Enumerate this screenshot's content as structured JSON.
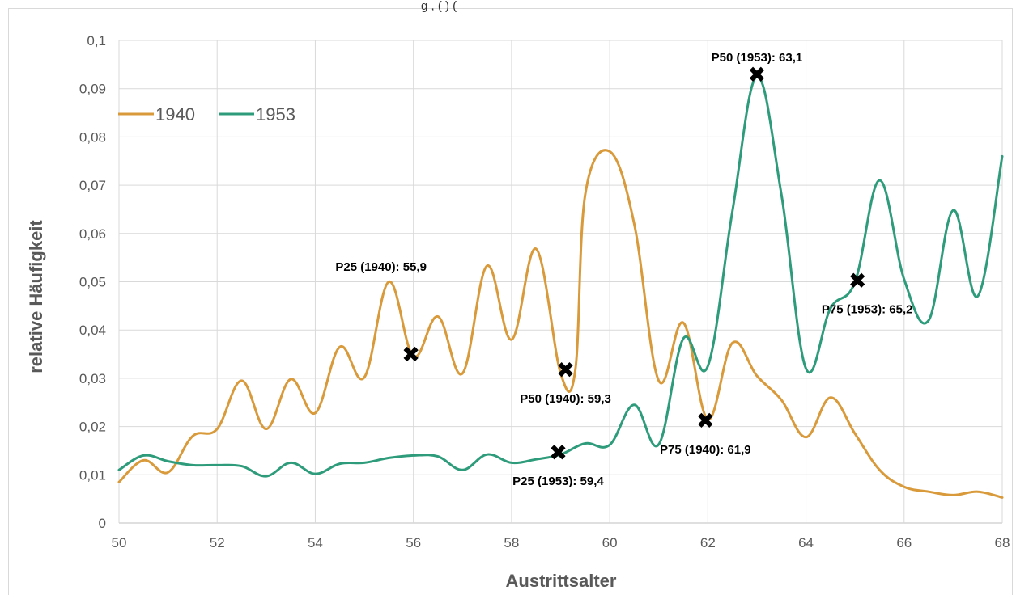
{
  "chart_data": {
    "type": "line",
    "title": "",
    "top_caption_fragment": "g           ,                                                        (        )                      (",
    "xlabel": "Austrittsalter",
    "ylabel": "relative Häufigkeit",
    "xlim": [
      50,
      68
    ],
    "ylim": [
      0,
      0.1
    ],
    "x_ticks": [
      "50",
      "52",
      "54",
      "56",
      "58",
      "60",
      "62",
      "64",
      "66",
      "68"
    ],
    "y_ticks": [
      "0",
      "0,01",
      "0,02",
      "0,03",
      "0,04",
      "0,05",
      "0,06",
      "0,07",
      "0,08",
      "0,09",
      "0,1"
    ],
    "grid": true,
    "legend_position": "top-left",
    "series": [
      {
        "name": "1940",
        "color": "#D89A3A",
        "x": [
          50,
          50.5,
          51,
          51.5,
          52,
          52.5,
          53,
          53.5,
          54,
          54.5,
          55,
          55.5,
          56,
          56.5,
          57,
          57.5,
          58,
          58.5,
          59,
          59.3,
          59.5,
          60,
          60.5,
          61,
          61.5,
          62,
          62.5,
          63,
          63.5,
          64,
          64.5,
          65,
          65.5,
          66,
          66.5,
          67,
          67.5,
          68
        ],
        "y": [
          0.0085,
          0.013,
          0.0105,
          0.018,
          0.0195,
          0.0295,
          0.0195,
          0.0298,
          0.0228,
          0.0365,
          0.0302,
          0.05,
          0.0345,
          0.0428,
          0.031,
          0.0533,
          0.038,
          0.0568,
          0.031,
          0.0318,
          0.068,
          0.077,
          0.062,
          0.0295,
          0.0415,
          0.0215,
          0.0373,
          0.0305,
          0.0255,
          0.0178,
          0.026,
          0.0185,
          0.011,
          0.0075,
          0.0065,
          0.0058,
          0.0065,
          0.0053
        ]
      },
      {
        "name": "1953",
        "color": "#2E9C7A",
        "x": [
          50,
          50.5,
          51,
          51.5,
          52,
          52.5,
          53,
          53.5,
          54,
          54.5,
          55,
          55.5,
          56,
          56.5,
          57,
          57.5,
          58,
          58.5,
          59,
          59.5,
          60,
          60.5,
          61,
          61.5,
          62,
          62.5,
          63,
          63.5,
          64,
          64.5,
          65,
          65.5,
          66,
          66.5,
          67,
          67.5,
          68
        ],
        "y": [
          0.011,
          0.014,
          0.0128,
          0.012,
          0.012,
          0.0118,
          0.0097,
          0.0125,
          0.0102,
          0.0123,
          0.0125,
          0.0135,
          0.014,
          0.0138,
          0.011,
          0.0142,
          0.0125,
          0.0132,
          0.0142,
          0.0165,
          0.0162,
          0.0245,
          0.0163,
          0.0382,
          0.0325,
          0.0645,
          0.0925,
          0.068,
          0.032,
          0.0445,
          0.05,
          0.071,
          0.0505,
          0.042,
          0.0648,
          0.047,
          0.076
        ]
      }
    ],
    "markers": [
      {
        "x": 55.95,
        "y": 0.035,
        "label": "P25 (1940):  55,9",
        "label_pos": "above-left"
      },
      {
        "x": 59.1,
        "y": 0.0318,
        "label": "P50 (1940):  59,3",
        "label_pos": "below"
      },
      {
        "x": 61.95,
        "y": 0.0213,
        "label": "P75 (1940):  61,9",
        "label_pos": "below"
      },
      {
        "x": 58.95,
        "y": 0.0147,
        "label": "P25 (1953):  59,4",
        "label_pos": "below"
      },
      {
        "x": 63.0,
        "y": 0.093,
        "label": "P50 (1953):  63,1",
        "label_pos": "above"
      },
      {
        "x": 65.05,
        "y": 0.0503,
        "label": "P75 (1953):  65,2",
        "label_pos": "below"
      }
    ]
  }
}
